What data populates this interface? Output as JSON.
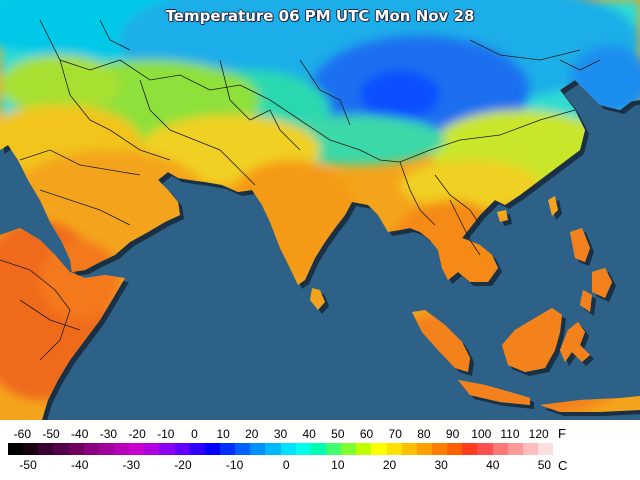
{
  "title": "Temperature 06 PM UTC Mon Nov 28",
  "colors": {
    "ocean": "#2e6187",
    "border": "#1c1c1c",
    "shadow": "#101820"
  },
  "legend": {
    "fahrenheit_unit": "F",
    "celsius_unit": "C",
    "fahrenheit_ticks": [
      "-60",
      "-50",
      "-40",
      "-30",
      "-20",
      "-10",
      "0",
      "10",
      "20",
      "30",
      "40",
      "50",
      "60",
      "70",
      "80",
      "90",
      "100",
      "110",
      "120"
    ],
    "celsius_ticks": [
      "-50",
      "-40",
      "-30",
      "-20",
      "-10",
      "0",
      "10",
      "20",
      "30",
      "40",
      "50"
    ],
    "color_scale": [
      "#000000",
      "#1a0010",
      "#3a0030",
      "#55004a",
      "#70005f",
      "#8a0080",
      "#a0009a",
      "#b800b8",
      "#c800d0",
      "#b000e0",
      "#8a00f0",
      "#6000ff",
      "#3000ff",
      "#0000ff",
      "#0030ff",
      "#0060ff",
      "#0090ff",
      "#00b8ff",
      "#00e0ff",
      "#00ffe8",
      "#00ffb0",
      "#40ff70",
      "#80ff30",
      "#c0ff00",
      "#ffff00",
      "#ffe000",
      "#ffc000",
      "#ffa000",
      "#ff8000",
      "#ff6000",
      "#ff3c20",
      "#ff5050",
      "#ff7878",
      "#ff9a9a",
      "#ffbcbc",
      "#ffdede"
    ]
  }
}
